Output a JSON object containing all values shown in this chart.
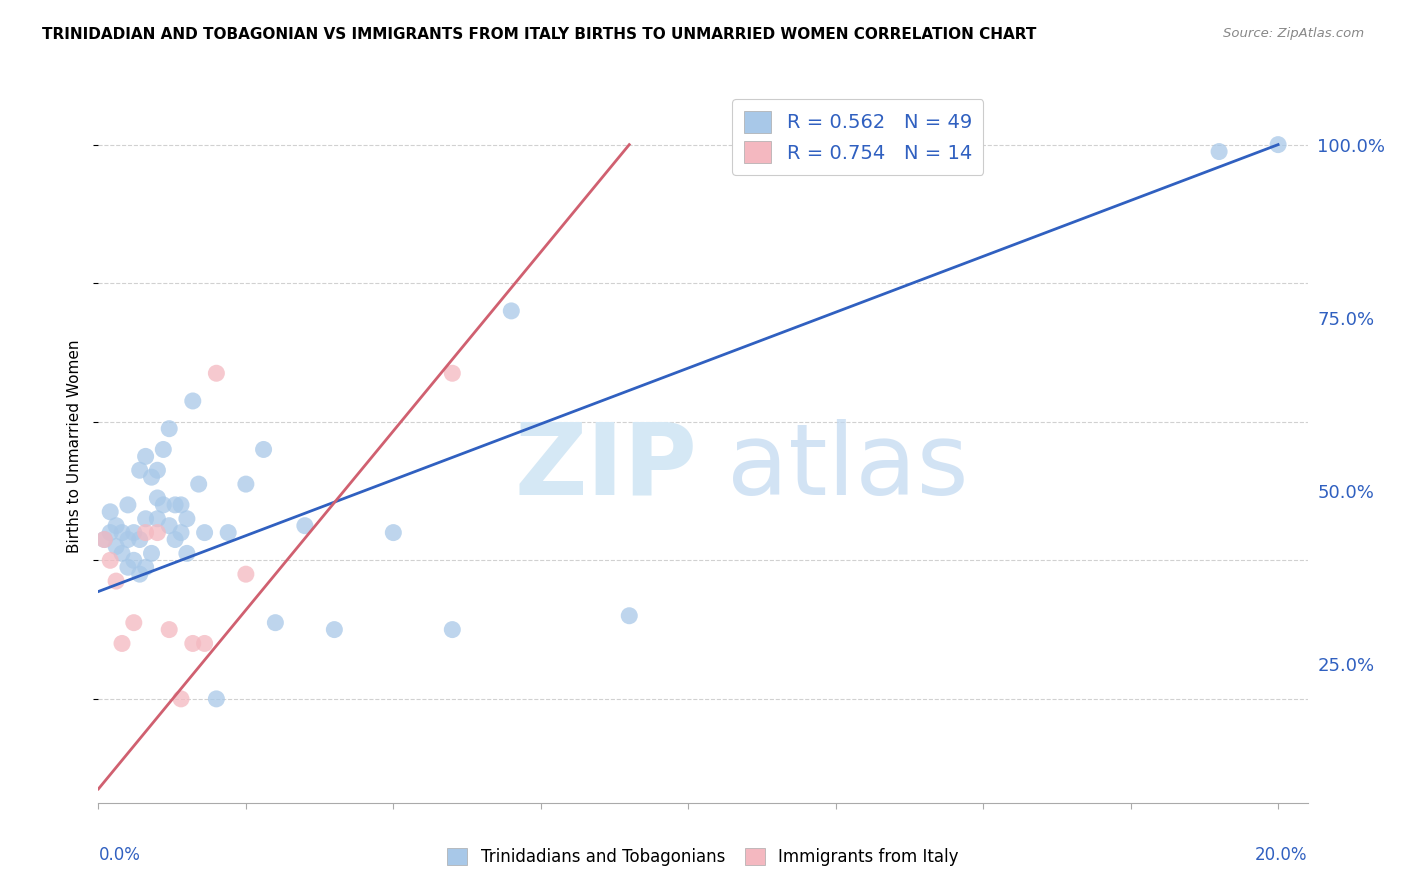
{
  "title": "TRINIDADIAN AND TOBAGONIAN VS IMMIGRANTS FROM ITALY BIRTHS TO UNMARRIED WOMEN CORRELATION CHART",
  "source": "Source: ZipAtlas.com",
  "ylabel": "Births to Unmarried Women",
  "yticks": [
    "25.0%",
    "50.0%",
    "75.0%",
    "100.0%"
  ],
  "ytick_vals": [
    0.25,
    0.5,
    0.75,
    1.0
  ],
  "legend_label1": "R = 0.562   N = 49",
  "legend_label2": "R = 0.754   N = 14",
  "legend_bottom1": "Trinidadians and Tobagonians",
  "legend_bottom2": "Immigrants from Italy",
  "blue_color": "#a8c8e8",
  "pink_color": "#f4b8c0",
  "blue_line_color": "#3060c0",
  "pink_line_color": "#d06070",
  "blue_scatter_x": [
    0.001,
    0.002,
    0.002,
    0.003,
    0.003,
    0.004,
    0.004,
    0.005,
    0.005,
    0.005,
    0.006,
    0.006,
    0.007,
    0.007,
    0.007,
    0.008,
    0.008,
    0.008,
    0.009,
    0.009,
    0.01,
    0.01,
    0.01,
    0.011,
    0.011,
    0.012,
    0.012,
    0.013,
    0.013,
    0.014,
    0.014,
    0.015,
    0.015,
    0.016,
    0.017,
    0.018,
    0.02,
    0.022,
    0.025,
    0.028,
    0.03,
    0.035,
    0.04,
    0.05,
    0.06,
    0.07,
    0.09,
    0.19,
    0.2
  ],
  "blue_scatter_y": [
    0.43,
    0.44,
    0.47,
    0.42,
    0.45,
    0.41,
    0.44,
    0.39,
    0.43,
    0.48,
    0.4,
    0.44,
    0.38,
    0.43,
    0.53,
    0.39,
    0.46,
    0.55,
    0.41,
    0.52,
    0.46,
    0.49,
    0.53,
    0.48,
    0.56,
    0.45,
    0.59,
    0.43,
    0.48,
    0.44,
    0.48,
    0.41,
    0.46,
    0.63,
    0.51,
    0.44,
    0.2,
    0.44,
    0.51,
    0.56,
    0.31,
    0.45,
    0.3,
    0.44,
    0.3,
    0.76,
    0.32,
    0.99,
    1.0
  ],
  "pink_scatter_x": [
    0.001,
    0.002,
    0.003,
    0.004,
    0.006,
    0.008,
    0.01,
    0.012,
    0.014,
    0.016,
    0.018,
    0.02,
    0.025,
    0.06
  ],
  "pink_scatter_y": [
    0.43,
    0.4,
    0.37,
    0.28,
    0.31,
    0.44,
    0.44,
    0.3,
    0.2,
    0.28,
    0.28,
    0.67,
    0.38,
    0.67
  ],
  "blue_line_x": [
    0.0,
    0.2
  ],
  "blue_line_y": [
    0.355,
    1.0
  ],
  "pink_line_x": [
    0.0,
    0.09
  ],
  "pink_line_y": [
    0.07,
    1.0
  ],
  "xlim": [
    0.0,
    0.205
  ],
  "ylim": [
    0.05,
    1.08
  ],
  "background_color": "#ffffff",
  "grid_color": "#cccccc",
  "watermark_zip_color": "#d5e8f5",
  "watermark_atlas_color": "#c0d8f0"
}
